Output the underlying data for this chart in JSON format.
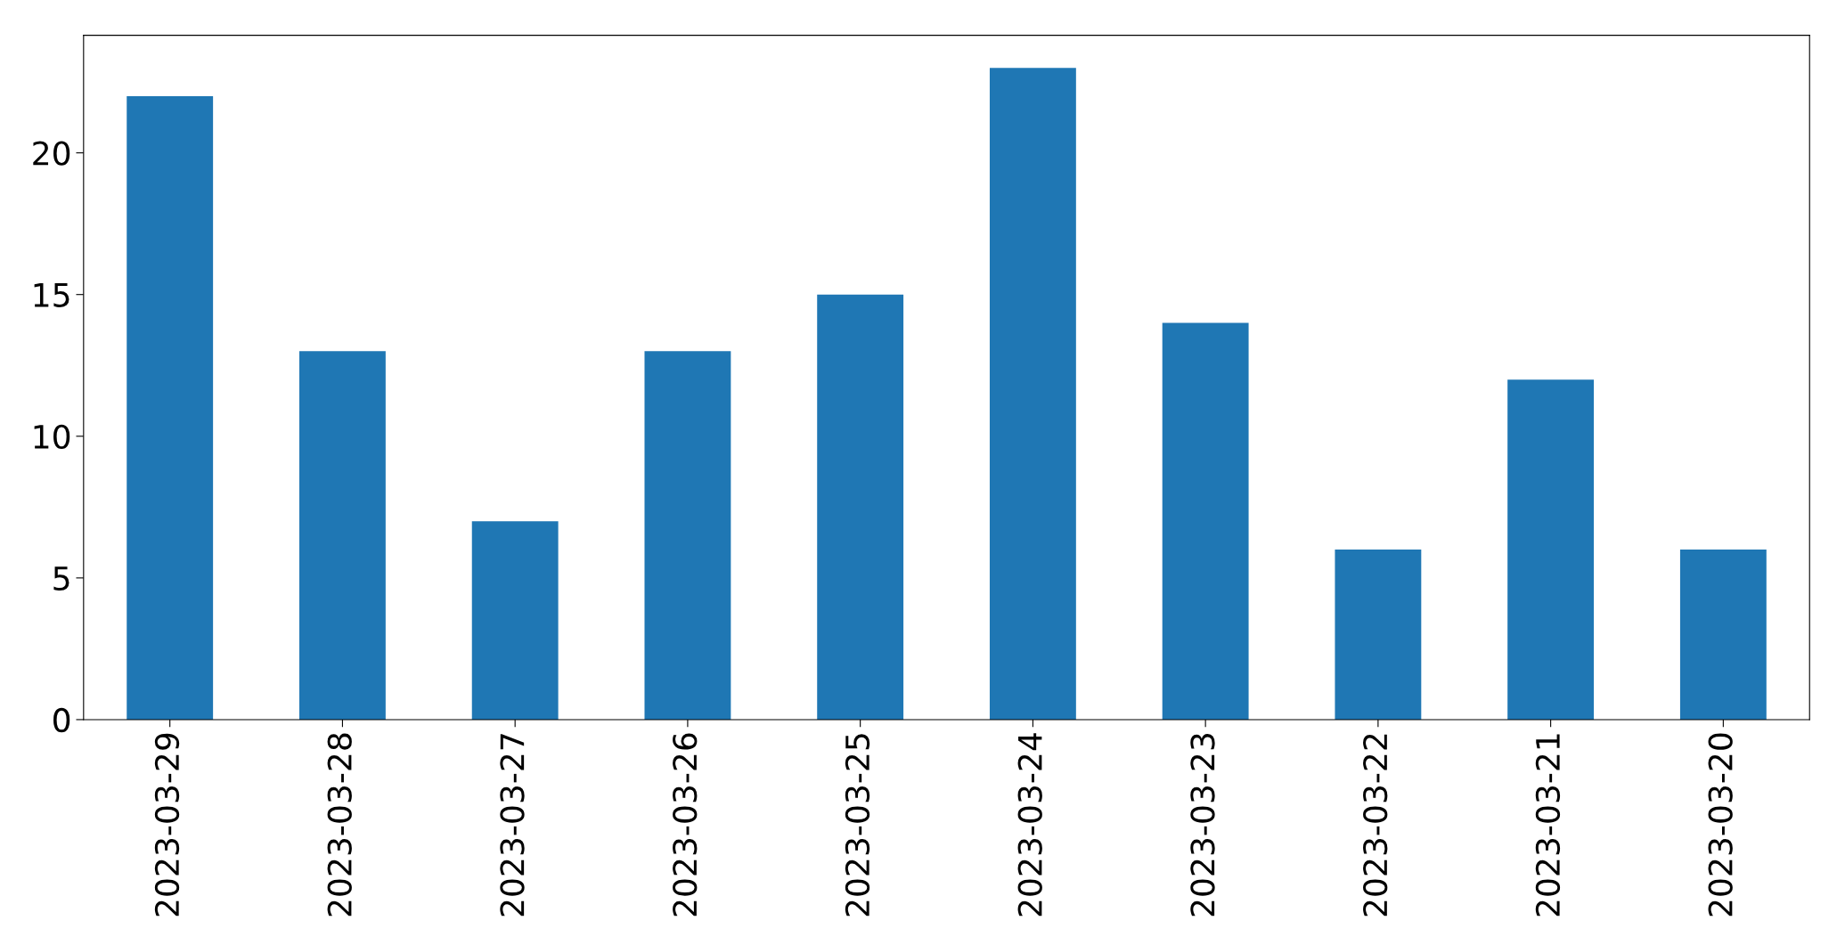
{
  "chart_data": {
    "type": "bar",
    "categories": [
      "2023-03-29",
      "2023-03-28",
      "2023-03-27",
      "2023-03-26",
      "2023-03-25",
      "2023-03-24",
      "2023-03-23",
      "2023-03-22",
      "2023-03-21",
      "2023-03-20"
    ],
    "values": [
      22,
      13,
      7,
      13,
      15,
      23,
      14,
      6,
      12,
      6
    ],
    "color": "#1f77b4",
    "ylim": [
      0,
      24.15
    ],
    "yticks": [
      0,
      5,
      10,
      15,
      20
    ],
    "grid": false,
    "legend": false
  }
}
